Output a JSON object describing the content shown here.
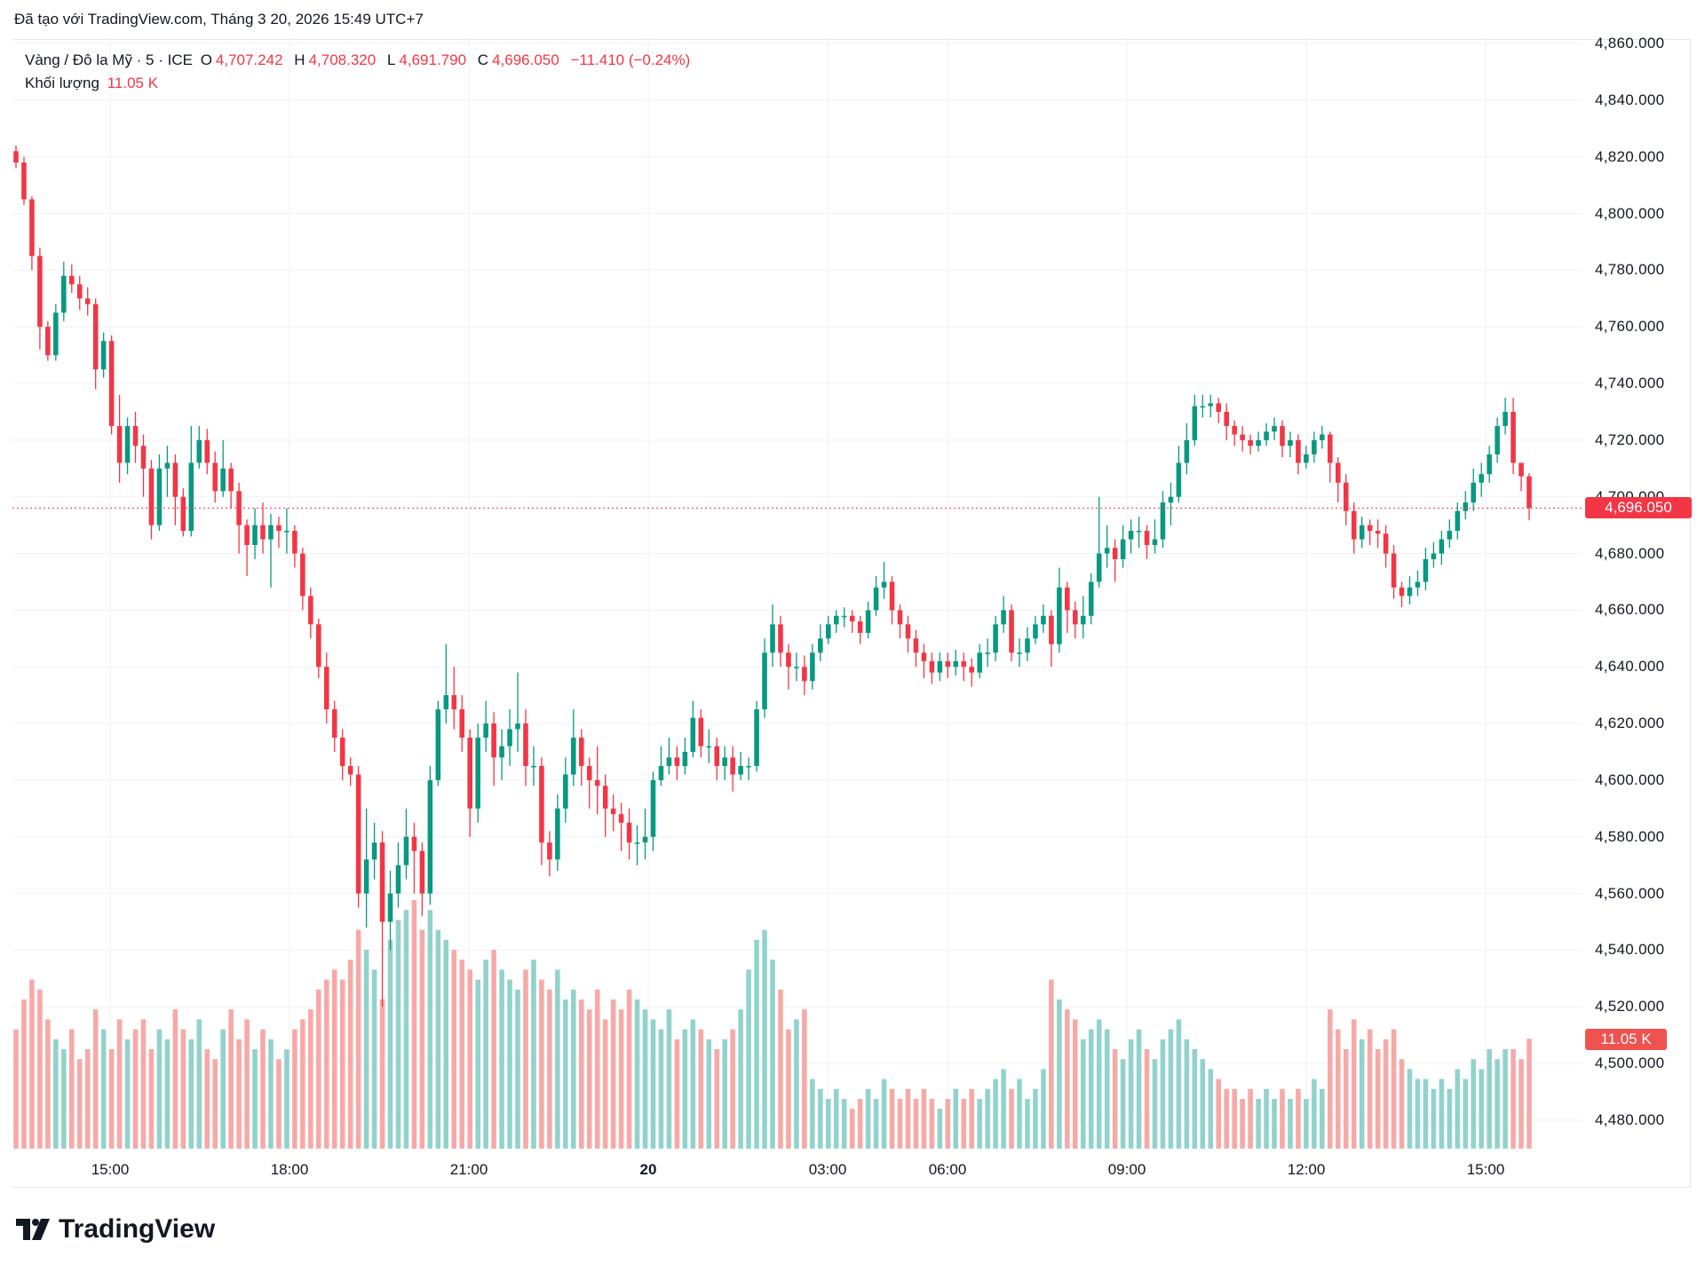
{
  "caption": "Đã tạo với TradingView.com, Tháng 3 20, 2026 15:49 UTC+7",
  "legend": {
    "symbol": "Vàng / Đô la Mỹ · 5 · ICE",
    "open_label": "O",
    "open": "4,707.242",
    "high_label": "H",
    "high": "4,708.320",
    "low_label": "L",
    "low": "4,691.790",
    "close_label": "C",
    "close": "4,696.050",
    "change": "−11.410 (−0.24%)",
    "volume_label": "Khối lượng",
    "volume": "11.05 K"
  },
  "price_badge": "4,696.050",
  "volume_badge": "11.05 K",
  "logo_text": "TradingView",
  "colors": {
    "up": "#089981",
    "down": "#f23645",
    "up_volume": "#92d2cc",
    "down_volume": "#f7a9a7",
    "grid": "#f0f1f3"
  },
  "chart_data": {
    "type": "candlestick",
    "interval": "5",
    "ylim": [
      4470,
      4865
    ],
    "grid": true,
    "y_ticks": [
      "4,860.000",
      "4,840.000",
      "4,820.000",
      "4,800.000",
      "4,780.000",
      "4,760.000",
      "4,740.000",
      "4,720.000",
      "4,700.000",
      "4,680.000",
      "4,660.000",
      "4,640.000",
      "4,620.000",
      "4,600.000",
      "4,580.000",
      "4,560.000",
      "4,540.000",
      "4,520.000",
      "4,500.000",
      "4,480.000"
    ],
    "y_tick_values": [
      4860,
      4840,
      4820,
      4800,
      4780,
      4760,
      4740,
      4720,
      4700,
      4680,
      4660,
      4640,
      4620,
      4600,
      4580,
      4560,
      4540,
      4520,
      4500,
      4480
    ],
    "x_ticks": [
      "15:00",
      "18:00",
      "21:00",
      "20",
      "03:00",
      "06:00",
      "09:00",
      "12:00",
      "15:00"
    ],
    "last_price": 4696.05,
    "candle_fields": [
      "open",
      "high",
      "low",
      "close",
      "volume_k"
    ],
    "candles": [
      [
        4822,
        4824,
        4816,
        4818,
        12
      ],
      [
        4818,
        4820,
        4803,
        4805,
        15
      ],
      [
        4805,
        4806,
        4780,
        4785,
        17
      ],
      [
        4785,
        4788,
        4752,
        4760,
        16
      ],
      [
        4760,
        4762,
        4748,
        4750,
        13
      ],
      [
        4750,
        4768,
        4748,
        4765,
        11
      ],
      [
        4765,
        4783,
        4762,
        4778,
        10
      ],
      [
        4778,
        4782,
        4772,
        4775,
        12
      ],
      [
        4775,
        4778,
        4766,
        4770,
        9
      ],
      [
        4770,
        4774,
        4764,
        4768,
        10
      ],
      [
        4768,
        4770,
        4738,
        4745,
        14
      ],
      [
        4745,
        4758,
        4742,
        4755,
        12
      ],
      [
        4755,
        4757,
        4722,
        4725,
        10
      ],
      [
        4725,
        4736,
        4705,
        4712,
        13
      ],
      [
        4712,
        4728,
        4708,
        4725,
        11
      ],
      [
        4725,
        4730,
        4712,
        4718,
        12
      ],
      [
        4718,
        4722,
        4700,
        4710,
        13
      ],
      [
        4710,
        4713,
        4685,
        4690,
        10
      ],
      [
        4690,
        4715,
        4688,
        4710,
        12
      ],
      [
        4710,
        4718,
        4700,
        4712,
        11
      ],
      [
        4712,
        4715,
        4690,
        4700,
        14
      ],
      [
        4700,
        4703,
        4686,
        4688,
        12
      ],
      [
        4688,
        4725,
        4686,
        4712,
        11
      ],
      [
        4712,
        4725,
        4710,
        4720,
        13
      ],
      [
        4720,
        4724,
        4708,
        4712,
        10
      ],
      [
        4712,
        4716,
        4698,
        4702,
        9
      ],
      [
        4702,
        4720,
        4700,
        4710,
        12
      ],
      [
        4710,
        4712,
        4696,
        4702,
        14
      ],
      [
        4702,
        4705,
        4680,
        4690,
        11
      ],
      [
        4690,
        4692,
        4672,
        4683,
        13
      ],
      [
        4683,
        4696,
        4678,
        4690,
        10
      ],
      [
        4690,
        4698,
        4680,
        4685,
        12
      ],
      [
        4685,
        4694,
        4668,
        4690,
        11
      ],
      [
        4690,
        4693,
        4682,
        4688,
        9
      ],
      [
        4688,
        4696,
        4680,
        4688,
        10
      ],
      [
        4688,
        4690,
        4675,
        4680,
        12
      ],
      [
        4680,
        4682,
        4660,
        4665,
        13
      ],
      [
        4665,
        4668,
        4650,
        4655,
        14
      ],
      [
        4655,
        4657,
        4636,
        4640,
        16
      ],
      [
        4640,
        4645,
        4620,
        4625,
        17
      ],
      [
        4625,
        4628,
        4610,
        4615,
        18
      ],
      [
        4615,
        4618,
        4600,
        4605,
        17
      ],
      [
        4605,
        4608,
        4598,
        4602,
        19
      ],
      [
        4602,
        4605,
        4555,
        4560,
        22
      ],
      [
        4560,
        4590,
        4548,
        4572,
        20
      ],
      [
        4572,
        4585,
        4565,
        4578,
        18
      ],
      [
        4578,
        4582,
        4520,
        4550,
        15
      ],
      [
        4550,
        4568,
        4540,
        4560,
        21
      ],
      [
        4560,
        4578,
        4555,
        4570,
        23
      ],
      [
        4570,
        4590,
        4565,
        4580,
        24
      ],
      [
        4580,
        4585,
        4560,
        4575,
        25
      ],
      [
        4575,
        4578,
        4552,
        4560,
        22
      ],
      [
        4560,
        4605,
        4556,
        4600,
        24
      ],
      [
        4600,
        4628,
        4598,
        4625,
        22
      ],
      [
        4625,
        4648,
        4620,
        4630,
        21
      ],
      [
        4630,
        4640,
        4618,
        4625,
        20
      ],
      [
        4625,
        4630,
        4610,
        4615,
        19
      ],
      [
        4615,
        4618,
        4580,
        4590,
        18
      ],
      [
        4590,
        4620,
        4585,
        4615,
        17
      ],
      [
        4615,
        4628,
        4610,
        4620,
        19
      ],
      [
        4620,
        4624,
        4598,
        4608,
        20
      ],
      [
        4608,
        4618,
        4600,
        4612,
        18
      ],
      [
        4612,
        4625,
        4605,
        4618,
        17
      ],
      [
        4618,
        4638,
        4610,
        4620,
        16
      ],
      [
        4620,
        4625,
        4598,
        4605,
        18
      ],
      [
        4605,
        4612,
        4598,
        4605,
        19
      ],
      [
        4605,
        4608,
        4570,
        4578,
        17
      ],
      [
        4578,
        4582,
        4566,
        4572,
        16
      ],
      [
        4572,
        4595,
        4568,
        4590,
        18
      ],
      [
        4590,
        4608,
        4585,
        4602,
        15
      ],
      [
        4602,
        4625,
        4598,
        4615,
        16
      ],
      [
        4615,
        4618,
        4598,
        4605,
        15
      ],
      [
        4605,
        4608,
        4590,
        4600,
        14
      ],
      [
        4600,
        4612,
        4588,
        4598,
        16
      ],
      [
        4598,
        4602,
        4580,
        4590,
        13
      ],
      [
        4590,
        4595,
        4582,
        4588,
        15
      ],
      [
        4588,
        4592,
        4575,
        4585,
        14
      ],
      [
        4585,
        4590,
        4572,
        4578,
        16
      ],
      [
        4578,
        4584,
        4570,
        4578,
        15
      ],
      [
        4578,
        4590,
        4572,
        4580,
        14
      ],
      [
        4580,
        4603,
        4575,
        4600,
        13
      ],
      [
        4600,
        4612,
        4598,
        4605,
        12
      ],
      [
        4605,
        4615,
        4602,
        4608,
        14
      ],
      [
        4608,
        4612,
        4600,
        4605,
        11
      ],
      [
        4605,
        4615,
        4602,
        4610,
        12
      ],
      [
        4610,
        4628,
        4608,
        4622,
        13
      ],
      [
        4622,
        4625,
        4608,
        4612,
        12
      ],
      [
        4612,
        4618,
        4606,
        4612,
        11
      ],
      [
        4612,
        4615,
        4600,
        4605,
        10
      ],
      [
        4605,
        4612,
        4600,
        4608,
        11
      ],
      [
        4608,
        4612,
        4596,
        4602,
        12
      ],
      [
        4602,
        4610,
        4600,
        4605,
        14
      ],
      [
        4605,
        4608,
        4600,
        4605,
        18
      ],
      [
        4605,
        4628,
        4603,
        4625,
        21
      ],
      [
        4625,
        4650,
        4622,
        4645,
        22
      ],
      [
        4645,
        4662,
        4640,
        4655,
        19
      ],
      [
        4655,
        4658,
        4640,
        4645,
        16
      ],
      [
        4645,
        4648,
        4632,
        4640,
        12
      ],
      [
        4640,
        4645,
        4635,
        4640,
        13
      ],
      [
        4640,
        4644,
        4630,
        4635,
        14
      ],
      [
        4635,
        4648,
        4632,
        4645,
        7
      ],
      [
        4645,
        4655,
        4642,
        4650,
        6
      ],
      [
        4650,
        4658,
        4648,
        4655,
        5
      ],
      [
        4655,
        4660,
        4652,
        4658,
        6
      ],
      [
        4658,
        4661,
        4654,
        4658,
        5
      ],
      [
        4658,
        4660,
        4652,
        4656,
        4
      ],
      [
        4656,
        4658,
        4648,
        4652,
        5
      ],
      [
        4652,
        4663,
        4650,
        4660,
        6
      ],
      [
        4660,
        4672,
        4658,
        4668,
        5
      ],
      [
        4668,
        4677,
        4664,
        4670,
        7
      ],
      [
        4670,
        4672,
        4655,
        4660,
        6
      ],
      [
        4660,
        4662,
        4650,
        4655,
        5
      ],
      [
        4655,
        4658,
        4645,
        4650,
        6
      ],
      [
        4650,
        4653,
        4640,
        4645,
        5
      ],
      [
        4645,
        4648,
        4636,
        4642,
        6
      ],
      [
        4642,
        4645,
        4634,
        4638,
        5
      ],
      [
        4638,
        4645,
        4635,
        4642,
        4
      ],
      [
        4642,
        4645,
        4636,
        4640,
        5
      ],
      [
        4640,
        4646,
        4637,
        4642,
        6
      ],
      [
        4642,
        4645,
        4635,
        4640,
        5
      ],
      [
        4640,
        4643,
        4633,
        4638,
        6
      ],
      [
        4638,
        4648,
        4636,
        4645,
        5
      ],
      [
        4645,
        4650,
        4640,
        4645,
        6
      ],
      [
        4645,
        4658,
        4642,
        4655,
        7
      ],
      [
        4655,
        4665,
        4652,
        4660,
        8
      ],
      [
        4660,
        4662,
        4642,
        4645,
        6
      ],
      [
        4645,
        4650,
        4640,
        4645,
        7
      ],
      [
        4645,
        4654,
        4642,
        4650,
        5
      ],
      [
        4650,
        4658,
        4648,
        4655,
        6
      ],
      [
        4655,
        4662,
        4652,
        4658,
        8
      ],
      [
        4658,
        4660,
        4640,
        4648,
        17
      ],
      [
        4648,
        4675,
        4645,
        4668,
        15
      ],
      [
        4668,
        4670,
        4652,
        4660,
        14
      ],
      [
        4660,
        4663,
        4650,
        4655,
        13
      ],
      [
        4655,
        4665,
        4650,
        4658,
        11
      ],
      [
        4658,
        4673,
        4655,
        4670,
        12
      ],
      [
        4670,
        4700,
        4668,
        4680,
        13
      ],
      [
        4680,
        4690,
        4675,
        4682,
        12
      ],
      [
        4682,
        4685,
        4670,
        4678,
        10
      ],
      [
        4678,
        4690,
        4675,
        4685,
        9
      ],
      [
        4685,
        4692,
        4680,
        4688,
        11
      ],
      [
        4688,
        4693,
        4682,
        4688,
        12
      ],
      [
        4688,
        4690,
        4678,
        4683,
        10
      ],
      [
        4683,
        4692,
        4680,
        4685,
        9
      ],
      [
        4685,
        4702,
        4682,
        4698,
        11
      ],
      [
        4698,
        4705,
        4690,
        4700,
        12
      ],
      [
        4700,
        4718,
        4698,
        4712,
        13
      ],
      [
        4712,
        4726,
        4708,
        4720,
        11
      ],
      [
        4720,
        4736,
        4718,
        4732,
        10
      ],
      [
        4732,
        4736,
        4728,
        4732,
        9
      ],
      [
        4732,
        4736,
        4728,
        4733,
        8
      ],
      [
        4733,
        4735,
        4726,
        4730,
        7
      ],
      [
        4730,
        4733,
        4720,
        4725,
        6
      ],
      [
        4725,
        4727,
        4718,
        4722,
        6
      ],
      [
        4722,
        4725,
        4716,
        4720,
        5
      ],
      [
        4720,
        4722,
        4715,
        4718,
        6
      ],
      [
        4718,
        4723,
        4716,
        4720,
        5
      ],
      [
        4720,
        4726,
        4718,
        4723,
        6
      ],
      [
        4723,
        4728,
        4720,
        4725,
        5
      ],
      [
        4725,
        4727,
        4714,
        4718,
        6
      ],
      [
        4718,
        4723,
        4714,
        4720,
        5
      ],
      [
        4720,
        4722,
        4708,
        4712,
        6
      ],
      [
        4712,
        4718,
        4710,
        4715,
        5
      ],
      [
        4715,
        4723,
        4712,
        4720,
        7
      ],
      [
        4720,
        4725,
        4717,
        4722,
        6
      ],
      [
        4722,
        4723,
        4705,
        4712,
        14
      ],
      [
        4712,
        4714,
        4698,
        4705,
        12
      ],
      [
        4705,
        4708,
        4690,
        4695,
        10
      ],
      [
        4695,
        4698,
        4680,
        4685,
        13
      ],
      [
        4685,
        4693,
        4682,
        4690,
        11
      ],
      [
        4690,
        4692,
        4683,
        4688,
        12
      ],
      [
        4688,
        4692,
        4682,
        4687,
        10
      ],
      [
        4687,
        4690,
        4675,
        4680,
        11
      ],
      [
        4680,
        4683,
        4664,
        4668,
        12
      ],
      [
        4668,
        4670,
        4661,
        4665,
        9
      ],
      [
        4665,
        4672,
        4662,
        4668,
        8
      ],
      [
        4668,
        4674,
        4665,
        4670,
        7
      ],
      [
        4670,
        4682,
        4667,
        4678,
        7
      ],
      [
        4678,
        4684,
        4675,
        4680,
        6
      ],
      [
        4680,
        4688,
        4676,
        4685,
        7
      ],
      [
        4685,
        4692,
        4682,
        4688,
        6
      ],
      [
        4688,
        4698,
        4685,
        4695,
        8
      ],
      [
        4695,
        4702,
        4692,
        4698,
        7
      ],
      [
        4698,
        4710,
        4695,
        4705,
        9
      ],
      [
        4705,
        4712,
        4700,
        4708,
        8
      ],
      [
        4708,
        4718,
        4705,
        4715,
        10
      ],
      [
        4715,
        4728,
        4712,
        4725,
        9
      ],
      [
        4725,
        4735,
        4722,
        4730,
        10
      ],
      [
        4730,
        4735,
        4708,
        4712,
        10
      ],
      [
        4712,
        4710,
        4702,
        4707.242,
        9
      ],
      [
        4707.242,
        4708.32,
        4691.79,
        4696.05,
        11.05
      ]
    ]
  }
}
